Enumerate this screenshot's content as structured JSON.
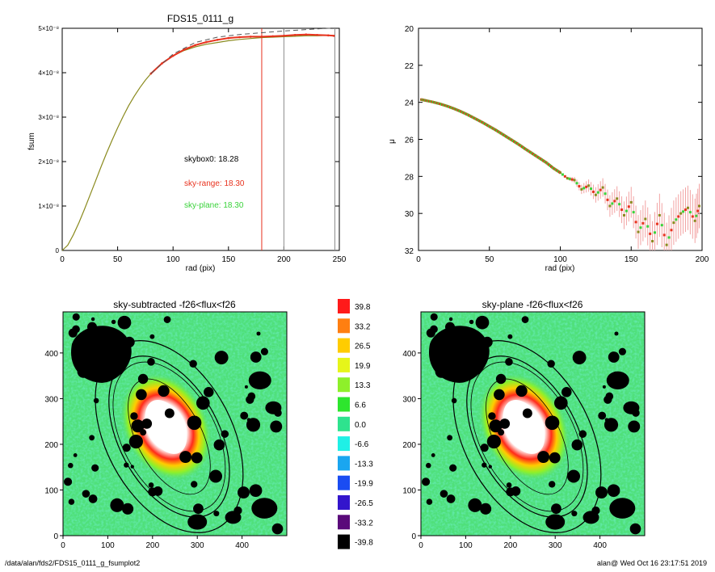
{
  "page": {
    "footer_left": "/data/alan/fds2/FDS15_0111_g_fsumplot2",
    "footer_right": "alan@  Wed Oct 16 23:17:51 2019"
  },
  "colors": {
    "black": "#000000",
    "red": "#e8321e",
    "green": "#39d23a",
    "olive": "#8a8a1e",
    "pink": "#f2a3a3",
    "gray": "#8c8c8c",
    "galaxy_core": "#ffffff",
    "field": "#4fe07a"
  },
  "chart_data": [
    {
      "type": "line",
      "title": "FDS15_0111_g",
      "xlabel": "rad (pix)",
      "ylabel": "fsum",
      "xlim": [
        0,
        250
      ],
      "ylim": [
        0,
        5e-08
      ],
      "x_ticks": [
        "0",
        "50",
        "100",
        "150",
        "200",
        "250"
      ],
      "y_ticks": [
        "0",
        "1×10⁻⁸",
        "2×10⁻⁸",
        "3×10⁻⁸",
        "4×10⁻⁸",
        "5×10⁻⁸"
      ],
      "series": [
        {
          "color": "olive",
          "x": [
            0,
            5,
            10,
            15,
            20,
            25,
            30,
            35,
            40,
            45,
            50,
            55,
            60,
            65,
            70,
            75,
            80,
            85,
            90,
            95,
            100,
            110,
            120,
            130,
            140,
            150,
            160,
            170,
            180,
            190,
            200,
            210,
            220,
            230,
            240,
            245
          ],
          "y": [
            0,
            1.2e-09,
            3.5e-09,
            6.2e-09,
            9.2e-09,
            1.24e-08,
            1.56e-08,
            1.88e-08,
            2.19e-08,
            2.48e-08,
            2.76e-08,
            3.02e-08,
            3.26e-08,
            3.47e-08,
            3.66e-08,
            3.83e-08,
            3.98e-08,
            4.1e-08,
            4.21e-08,
            4.3e-08,
            4.38e-08,
            4.5e-08,
            4.58e-08,
            4.64e-08,
            4.68e-08,
            4.72e-08,
            4.75e-08,
            4.77e-08,
            4.79e-08,
            4.8e-08,
            4.81e-08,
            4.82e-08,
            4.83e-08,
            4.83e-08,
            4.84e-08,
            4.84e-08
          ]
        },
        {
          "color": "red",
          "x": [
            80,
            90,
            100,
            110,
            120,
            130,
            140,
            150,
            160,
            170,
            180,
            190,
            200,
            210,
            220,
            230,
            240,
            245
          ],
          "y": [
            3.98e-08,
            4.21e-08,
            4.38e-08,
            4.52e-08,
            4.62e-08,
            4.69e-08,
            4.74e-08,
            4.78e-08,
            4.8e-08,
            4.81e-08,
            4.81e-08,
            4.82e-08,
            4.83e-08,
            4.85e-08,
            4.86e-08,
            4.85e-08,
            4.84e-08,
            4.83e-08
          ]
        },
        {
          "color": "dashed",
          "x": [
            80,
            100,
            120,
            140,
            160,
            180,
            200,
            220,
            240,
            245
          ],
          "y": [
            3.98e-08,
            4.42e-08,
            4.68e-08,
            4.8e-08,
            4.86e-08,
            4.9e-08,
            4.94e-08,
            4.97e-08,
            5e-08,
            5e-08
          ]
        }
      ],
      "vlines": [
        {
          "x": 180,
          "color": "red"
        },
        {
          "x": 200,
          "color": "gray"
        },
        {
          "x": 246,
          "color": "gray"
        }
      ],
      "annotations": [
        {
          "text": "skybox0: 18.28",
          "color": "black"
        },
        {
          "text": "sky-range: 18.30",
          "color": "red"
        },
        {
          "text": "sky-plane: 18.30",
          "color": "green"
        }
      ]
    },
    {
      "type": "scatter",
      "title": "",
      "xlabel": "rad (pix)",
      "ylabel": "μ",
      "xlim": [
        0,
        200
      ],
      "ylim": [
        32,
        20
      ],
      "x_ticks": [
        "0",
        "50",
        "100",
        "150",
        "200"
      ],
      "y_ticks": [
        "20",
        "22",
        "24",
        "26",
        "28",
        "30",
        "32"
      ],
      "profile_points": [
        [
          2,
          23.85
        ],
        [
          5,
          23.9
        ],
        [
          10,
          23.98
        ],
        [
          15,
          24.08
        ],
        [
          20,
          24.2
        ],
        [
          25,
          24.34
        ],
        [
          30,
          24.5
        ],
        [
          35,
          24.68
        ],
        [
          40,
          24.88
        ],
        [
          45,
          25.08
        ],
        [
          50,
          25.3
        ],
        [
          55,
          25.52
        ],
        [
          60,
          25.76
        ],
        [
          65,
          26.0
        ],
        [
          70,
          26.24
        ],
        [
          75,
          26.5
        ],
        [
          80,
          26.75
        ],
        [
          85,
          27.0
        ],
        [
          90,
          27.25
        ],
        [
          95,
          27.55
        ],
        [
          100,
          27.8
        ],
        [
          105,
          28.1
        ],
        [
          110,
          28.2
        ],
        [
          115,
          28.7
        ],
        [
          120,
          28.5
        ],
        [
          125,
          29.0
        ],
        [
          130,
          28.6
        ],
        [
          135,
          29.6
        ],
        [
          140,
          29.2
        ],
        [
          145,
          30.1
        ],
        [
          150,
          29.4
        ],
        [
          155,
          31.0
        ],
        [
          160,
          30.3
        ],
        [
          165,
          31.5
        ],
        [
          170,
          30.1
        ],
        [
          175,
          31.7
        ],
        [
          180,
          30.5
        ],
        [
          185,
          30.0
        ],
        [
          190,
          29.7
        ],
        [
          195,
          30.4
        ],
        [
          198,
          29.6
        ]
      ]
    },
    {
      "type": "heatmap",
      "title": "sky-subtracted -f26<flux<f26",
      "xlim": [
        0,
        500
      ],
      "ylim": [
        0,
        490
      ],
      "x_ticks": [
        "0",
        "100",
        "200",
        "300",
        "400"
      ],
      "y_ticks": [
        "0",
        "100",
        "200",
        "300",
        "400"
      ]
    },
    {
      "type": "heatmap",
      "title": "sky-plane -f26<flux<f26",
      "xlim": [
        0,
        500
      ],
      "ylim": [
        0,
        490
      ],
      "x_ticks": [
        "0",
        "100",
        "200",
        "300",
        "400"
      ],
      "y_ticks": [
        "0",
        "100",
        "200",
        "300",
        "400"
      ]
    },
    {
      "type": "colorbar",
      "levels": [
        {
          "label": "39.8",
          "color": "#ff1a1a"
        },
        {
          "label": "33.2",
          "color": "#ff7f11"
        },
        {
          "label": "26.5",
          "color": "#ffcc00"
        },
        {
          "label": "19.9",
          "color": "#e6f51a"
        },
        {
          "label": "13.3",
          "color": "#8ef02a"
        },
        {
          "label": "6.6",
          "color": "#2de62d"
        },
        {
          "label": "0.0",
          "color": "#2ee38e"
        },
        {
          "label": "-6.6",
          "color": "#1ff0e6"
        },
        {
          "label": "-13.3",
          "color": "#1aa6f0"
        },
        {
          "label": "-19.9",
          "color": "#1a4cf2"
        },
        {
          "label": "-26.5",
          "color": "#3315cc"
        },
        {
          "label": "-33.2",
          "color": "#5a0a7a"
        },
        {
          "label": "-39.8",
          "color": "#000000"
        }
      ]
    }
  ]
}
